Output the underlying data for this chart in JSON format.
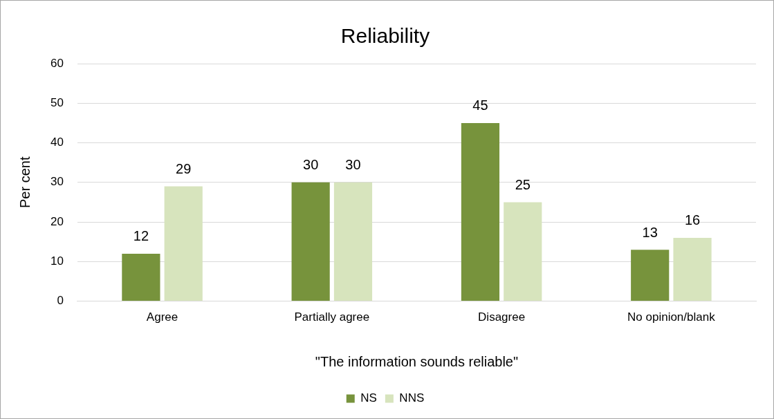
{
  "chart_data": {
    "type": "bar",
    "title": "Reliability",
    "xlabel": "\"The information sounds reliable\"",
    "ylabel": "Per cent",
    "categories": [
      "Agree",
      "Partially agree",
      "Disagree",
      "No opinion/blank"
    ],
    "series": [
      {
        "name": "NS",
        "color": "#77933c",
        "values": [
          12,
          30,
          45,
          13
        ]
      },
      {
        "name": "NNS",
        "color": "#d7e4bd",
        "values": [
          29,
          30,
          25,
          16
        ]
      }
    ],
    "ylim": [
      0,
      60
    ],
    "yticks": [
      0,
      10,
      20,
      30,
      40,
      50,
      60
    ],
    "grid": "y",
    "legend": "bottom",
    "data_labels": true
  }
}
